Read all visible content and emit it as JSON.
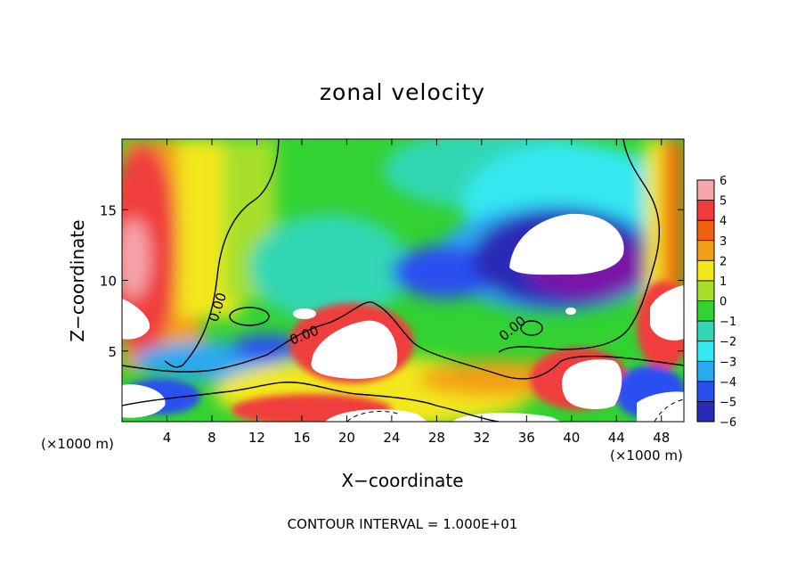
{
  "chart_data": {
    "type": "heatmap",
    "title": "zonal velocity",
    "xlabel": "X−coordinate",
    "ylabel": "Z−coordinate",
    "x_unit_left": "(×1000 m)",
    "x_unit_right": "(×1000 m)",
    "footer": "CONTOUR INTERVAL = 1.000E+01",
    "xlim": [
      0,
      50
    ],
    "ylim": [
      0,
      20
    ],
    "x_ticks": [
      4,
      8,
      12,
      16,
      20,
      24,
      28,
      32,
      36,
      40,
      44,
      48
    ],
    "x_tick_labels": [
      "4",
      "8",
      "12",
      "16",
      "20",
      "24",
      "28",
      "32",
      "36",
      "40",
      "44",
      "48"
    ],
    "y_ticks": [
      5,
      10,
      15
    ],
    "y_tick_labels": [
      "5",
      "10",
      "15"
    ],
    "contour_labels": [
      "0.00",
      "0.00",
      "0.00"
    ],
    "colorbar": {
      "levels": [
        6,
        5,
        4,
        3,
        2,
        1,
        0,
        -1,
        -2,
        -3,
        -4,
        -5,
        -6
      ],
      "labels": [
        "6",
        "5",
        "4",
        "3",
        "2",
        "1",
        "0",
        "−1",
        "−2",
        "−3",
        "−4",
        "−5",
        "−6"
      ],
      "colors": [
        "#f4a6ac",
        "#f03c3c",
        "#f06010",
        "#f2a018",
        "#f2e81a",
        "#a6e02a",
        "#32d232",
        "#32d7b4",
        "#34e8f0",
        "#2aa8f0",
        "#2a4ff0",
        "#2a2ab8",
        "#7814a8"
      ]
    },
    "field_regions": [
      {
        "name": "upper-left-positive",
        "value": 5
      },
      {
        "name": "right-edge-positive",
        "value": 4
      },
      {
        "name": "upper-right-vortex-negative",
        "value": -6
      },
      {
        "name": "lower-bands-positive",
        "value": 6
      }
    ]
  }
}
